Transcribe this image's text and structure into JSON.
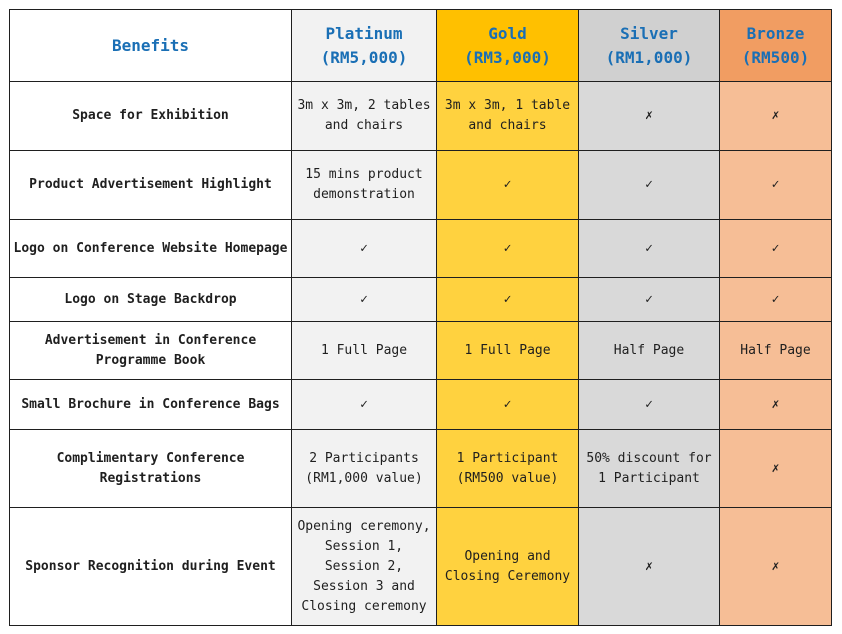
{
  "headers": {
    "benefits": "Benefits",
    "tiers": [
      {
        "name": "Platinum",
        "price": "(RM5,000)"
      },
      {
        "name": "Gold",
        "price": "(RM3,000)"
      },
      {
        "name": "Silver",
        "price": "(RM1,000)"
      },
      {
        "name": "Bronze",
        "price": "(RM500)"
      }
    ]
  },
  "rows": [
    {
      "benefit": "Space for Exhibition",
      "platinum": "3m x 3m, 2 tables and chairs",
      "gold": "3m x 3m, 1 table and chairs",
      "silver": "✗",
      "bronze": "✗"
    },
    {
      "benefit": "Product Advertisement Highlight",
      "platinum": "15 mins product demonstration",
      "gold": "✓",
      "silver": "✓",
      "bronze": "✓"
    },
    {
      "benefit": "Logo on Conference Website Homepage",
      "platinum": "✓",
      "gold": "✓",
      "silver": "✓",
      "bronze": "✓"
    },
    {
      "benefit": "Logo on Stage Backdrop",
      "platinum": "✓",
      "gold": "✓",
      "silver": "✓",
      "bronze": "✓"
    },
    {
      "benefit": "Advertisement in Conference Programme Book",
      "platinum": "1 Full Page",
      "gold": "1 Full Page",
      "silver": "Half Page",
      "bronze": "Half Page"
    },
    {
      "benefit": "Small Brochure in Conference Bags",
      "platinum": "✓",
      "gold": "✓",
      "silver": "✓",
      "bronze": "✗"
    },
    {
      "benefit": "Complimentary Conference Registrations",
      "platinum": "2 Participants (RM1,000 value)",
      "gold": "1 Participant (RM500 value)",
      "silver": "50% discount for 1 Participant",
      "bronze": "✗"
    },
    {
      "benefit": "Sponsor Recognition during Event",
      "platinum": "Opening ceremony, Session 1, Session 2, Session 3 and Closing ceremony",
      "gold": "Opening and Closing Ceremony",
      "silver": "✗",
      "bronze": "✗"
    }
  ],
  "colors": {
    "header_text": "#1a6fb5",
    "platinum": "#f2f2f2",
    "gold": "#ffd23f",
    "silver": "#d9d9d9",
    "bronze": "#f6be96"
  }
}
